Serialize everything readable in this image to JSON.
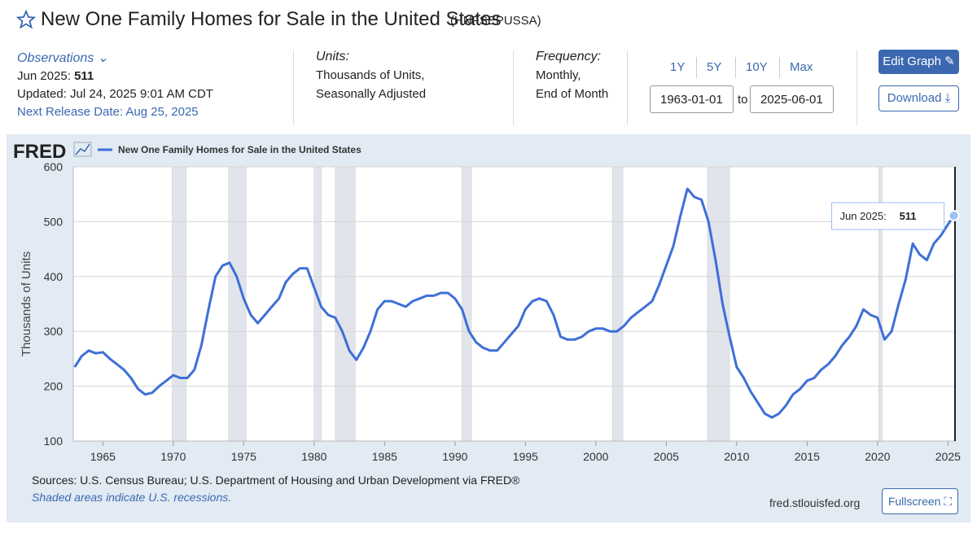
{
  "header": {
    "title": "New One Family Homes for Sale in the United States",
    "series_id": "(HNFSEPUSSA)",
    "observations_label": "Observations",
    "observation_date": "Jun 2025:",
    "observation_value": "511",
    "updated": "Updated: Jul 24, 2025 9:01 AM CDT",
    "next_release": "Next Release Date: Aug 25, 2025",
    "units_label": "Units:",
    "units_lines": [
      "Thousands of Units,",
      "Seasonally Adjusted"
    ],
    "frequency_label": "Frequency:",
    "frequency_lines": [
      "Monthly,",
      "End of Month"
    ],
    "ranges": [
      "1Y",
      "5Y",
      "10Y",
      "Max"
    ],
    "start_date": "1963-01-01",
    "to": "to",
    "end_date": "2025-06-01",
    "edit_graph": "Edit Graph",
    "download": "Download"
  },
  "chart_data": {
    "type": "line",
    "logo": "FRED",
    "y_label": "Thousands of Units",
    "x": [
      1963.0,
      1963.5,
      1964.0,
      1964.5,
      1965.0,
      1965.5,
      1966.0,
      1966.5,
      1967.0,
      1967.5,
      1968.0,
      1968.5,
      1969.0,
      1969.5,
      1970.0,
      1970.5,
      1971.0,
      1971.5,
      1972.0,
      1972.5,
      1973.0,
      1973.5,
      1974.0,
      1974.5,
      1975.0,
      1975.5,
      1976.0,
      1976.5,
      1977.0,
      1977.5,
      1978.0,
      1978.5,
      1979.0,
      1979.5,
      1980.0,
      1980.5,
      1981.0,
      1981.5,
      1982.0,
      1982.5,
      1983.0,
      1983.5,
      1984.0,
      1984.5,
      1985.0,
      1985.5,
      1986.0,
      1986.5,
      1987.0,
      1987.5,
      1988.0,
      1988.5,
      1989.0,
      1989.5,
      1990.0,
      1990.5,
      1991.0,
      1991.5,
      1992.0,
      1992.5,
      1993.0,
      1993.5,
      1994.0,
      1994.5,
      1995.0,
      1995.5,
      1996.0,
      1996.5,
      1997.0,
      1997.5,
      1998.0,
      1998.5,
      1999.0,
      1999.5,
      2000.0,
      2000.5,
      2001.0,
      2001.5,
      2002.0,
      2002.5,
      2003.0,
      2003.5,
      2004.0,
      2004.5,
      2005.0,
      2005.5,
      2006.0,
      2006.5,
      2007.0,
      2007.5,
      2008.0,
      2008.5,
      2009.0,
      2009.5,
      2010.0,
      2010.5,
      2011.0,
      2011.5,
      2012.0,
      2012.5,
      2013.0,
      2013.5,
      2014.0,
      2014.5,
      2015.0,
      2015.5,
      2016.0,
      2016.5,
      2017.0,
      2017.5,
      2018.0,
      2018.5,
      2019.0,
      2019.5,
      2020.0,
      2020.5,
      2021.0,
      2021.5,
      2022.0,
      2022.5,
      2023.0,
      2023.5,
      2024.0,
      2024.5,
      2025.0,
      2025.417
    ],
    "series": [
      {
        "name": "New One Family Homes for Sale in the United States",
        "color": "#3e6fd8",
        "values": [
          235,
          255,
          265,
          260,
          262,
          250,
          240,
          230,
          215,
          195,
          185,
          188,
          200,
          210,
          220,
          215,
          215,
          230,
          275,
          340,
          400,
          420,
          425,
          400,
          360,
          330,
          315,
          330,
          345,
          360,
          390,
          405,
          415,
          415,
          380,
          345,
          330,
          325,
          300,
          265,
          248,
          270,
          300,
          340,
          355,
          355,
          350,
          345,
          355,
          360,
          365,
          365,
          370,
          370,
          360,
          340,
          300,
          280,
          270,
          265,
          265,
          280,
          295,
          310,
          340,
          355,
          360,
          355,
          330,
          290,
          285,
          285,
          290,
          300,
          305,
          305,
          300,
          300,
          310,
          325,
          335,
          345,
          355,
          385,
          420,
          455,
          510,
          560,
          545,
          540,
          500,
          430,
          350,
          290,
          235,
          215,
          190,
          170,
          150,
          143,
          150,
          165,
          185,
          195,
          210,
          215,
          230,
          240,
          255,
          275,
          290,
          310,
          340,
          330,
          325,
          285,
          300,
          350,
          395,
          460,
          440,
          430,
          460,
          475,
          495,
          511
        ]
      }
    ],
    "recessions": [
      [
        1969.92,
        1970.92
      ],
      [
        1973.92,
        1975.17
      ],
      [
        1980.0,
        1980.5
      ],
      [
        1981.5,
        1982.92
      ],
      [
        1990.5,
        1991.17
      ],
      [
        2001.17,
        2001.92
      ],
      [
        2007.92,
        2009.5
      ],
      [
        2020.08,
        2020.33
      ]
    ],
    "xlim": [
      1962.9,
      2025.5
    ],
    "ylim": [
      100,
      600
    ],
    "xticks": [
      1965,
      1970,
      1975,
      1980,
      1985,
      1990,
      1995,
      2000,
      2005,
      2010,
      2015,
      2020,
      2025
    ],
    "yticks": [
      100,
      200,
      300,
      400,
      500,
      600
    ],
    "grid": true,
    "tooltip": {
      "label": "Jun 2025:",
      "value": "511"
    }
  },
  "footer": {
    "sources": "Sources: U.S. Census Bureau; U.S. Department of Housing and Urban Development via FRED®",
    "note": "Shaded areas indicate U.S. recessions.",
    "site": "fred.stlouisfed.org",
    "fullscreen": "Fullscreen"
  }
}
